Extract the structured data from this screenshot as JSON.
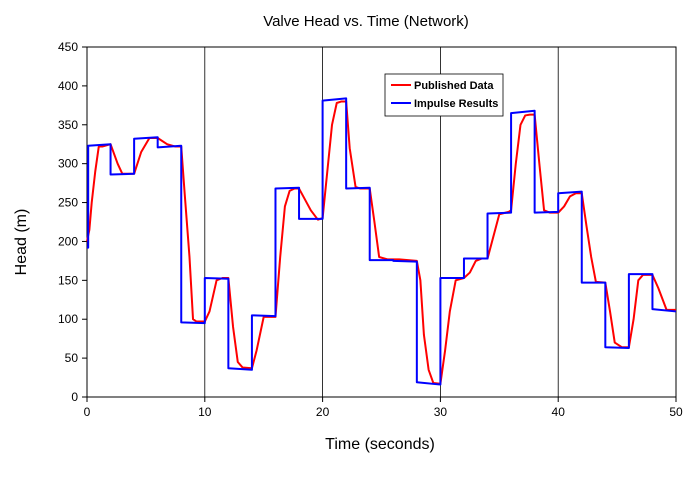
{
  "chart_data": {
    "type": "line",
    "title": "Valve Head vs. Time (Network)",
    "xlabel": "Time (seconds)",
    "ylabel": "Head (m)",
    "xlim": [
      0,
      50
    ],
    "ylim": [
      0,
      450
    ],
    "xticks": [
      0,
      10,
      20,
      30,
      40,
      50
    ],
    "yticks": [
      0,
      50,
      100,
      150,
      200,
      250,
      300,
      350,
      400,
      450
    ],
    "grid": "vertical-only",
    "legend_position": "top-right",
    "series": [
      {
        "name": "Published Data",
        "color": "#ff0000",
        "x": [
          0,
          0.2,
          0.4,
          0.7,
          1.0,
          1.3,
          2.0,
          2.6,
          3.0,
          4.0,
          4.6,
          5.3,
          6.0,
          6.8,
          7.5,
          8.0,
          8.3,
          8.7,
          9.0,
          9.3,
          10.0,
          10.4,
          11.0,
          11.5,
          12.0,
          12.4,
          12.8,
          13.2,
          14.0,
          14.4,
          15.0,
          16.0,
          16.4,
          16.8,
          17.2,
          17.6,
          18.0,
          19.0,
          19.6,
          20.0,
          20.4,
          20.8,
          21.2,
          21.6,
          22.0,
          22.3,
          22.8,
          23.2,
          24.0,
          24.4,
          24.8,
          25.5,
          26.5,
          28.0,
          28.3,
          28.6,
          29.0,
          29.4,
          30.0,
          30.4,
          30.8,
          31.3,
          32.0,
          32.5,
          33.0,
          33.5,
          34.0,
          35.0,
          35.8,
          36.0,
          36.4,
          36.8,
          37.2,
          37.6,
          38.0,
          38.4,
          38.8,
          39.3,
          40.0,
          40.5,
          41.0,
          41.5,
          42.0,
          42.4,
          42.8,
          43.2,
          44.0,
          44.4,
          44.8,
          45.4,
          46.0,
          46.4,
          46.8,
          47.2,
          48.0,
          48.5,
          49.2,
          50.0
        ],
        "y": [
          200,
          215,
          250,
          290,
          322,
          322,
          325,
          300,
          287,
          287,
          315,
          333,
          333,
          325,
          322,
          322,
          260,
          180,
          100,
          97,
          97,
          110,
          150,
          153,
          153,
          90,
          45,
          38,
          37,
          60,
          103,
          103,
          180,
          245,
          265,
          268,
          268,
          240,
          228,
          230,
          290,
          350,
          378,
          380,
          380,
          320,
          270,
          268,
          268,
          225,
          180,
          177,
          177,
          175,
          150,
          80,
          35,
          18,
          17,
          60,
          110,
          150,
          153,
          160,
          175,
          178,
          178,
          235,
          238,
          240,
          300,
          350,
          362,
          363,
          363,
          300,
          240,
          237,
          237,
          245,
          258,
          262,
          262,
          220,
          180,
          148,
          147,
          110,
          70,
          64,
          64,
          100,
          150,
          157,
          157,
          140,
          112,
          112
        ]
      },
      {
        "name": "Impulse Results",
        "color": "#0000ff",
        "x": [
          0,
          0.1,
          0.1,
          2.0,
          2.0,
          4.0,
          4.0,
          6.0,
          6.0,
          8.0,
          8.0,
          10.0,
          10.0,
          12.0,
          12.0,
          14.0,
          14.0,
          16.0,
          16.0,
          18.0,
          18.0,
          20.0,
          20.0,
          22.0,
          22.0,
          24.0,
          24.0,
          26.0,
          26.0,
          28.0,
          28.0,
          30.0,
          30.0,
          32.0,
          32.0,
          34.0,
          34.0,
          36.0,
          36.0,
          38.0,
          38.0,
          40.0,
          40.0,
          42.0,
          42.0,
          44.0,
          44.0,
          46.0,
          46.0,
          48.0,
          48.0,
          50.0
        ],
        "y": [
          192,
          192,
          323,
          325,
          286,
          287,
          332,
          334,
          321,
          323,
          96,
          95,
          153,
          152,
          37,
          35,
          105,
          104,
          268,
          269,
          229,
          229,
          381,
          384,
          268,
          269,
          176,
          176,
          175,
          174,
          19,
          16,
          153,
          153,
          178,
          178,
          236,
          237,
          365,
          368,
          237,
          238,
          262,
          264,
          147,
          147,
          64,
          63,
          158,
          158,
          113,
          110
        ]
      }
    ]
  }
}
